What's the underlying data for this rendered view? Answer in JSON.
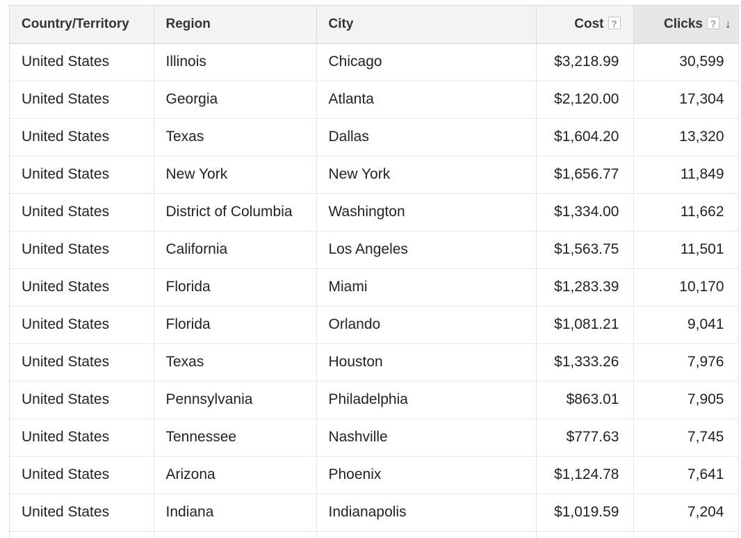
{
  "table": {
    "headers": {
      "country": "Country/Territory",
      "region": "Region",
      "city": "City",
      "cost": "Cost",
      "clicks": "Clicks"
    },
    "help_glyph": "?",
    "sort_glyph": "↓",
    "sorted_column": "Clicks",
    "sort_direction": "descending",
    "rows": [
      {
        "country": "United States",
        "region": "Illinois",
        "city": "Chicago",
        "cost": "$3,218.99",
        "clicks": "30,599"
      },
      {
        "country": "United States",
        "region": "Georgia",
        "city": "Atlanta",
        "cost": "$2,120.00",
        "clicks": "17,304"
      },
      {
        "country": "United States",
        "region": "Texas",
        "city": "Dallas",
        "cost": "$1,604.20",
        "clicks": "13,320"
      },
      {
        "country": "United States",
        "region": "New York",
        "city": "New York",
        "cost": "$1,656.77",
        "clicks": "11,849"
      },
      {
        "country": "United States",
        "region": "District of Columbia",
        "city": "Washington",
        "cost": "$1,334.00",
        "clicks": "11,662"
      },
      {
        "country": "United States",
        "region": "California",
        "city": "Los Angeles",
        "cost": "$1,563.75",
        "clicks": "11,501"
      },
      {
        "country": "United States",
        "region": "Florida",
        "city": "Miami",
        "cost": "$1,283.39",
        "clicks": "10,170"
      },
      {
        "country": "United States",
        "region": "Florida",
        "city": "Orlando",
        "cost": "$1,081.21",
        "clicks": "9,041"
      },
      {
        "country": "United States",
        "region": "Texas",
        "city": "Houston",
        "cost": "$1,333.26",
        "clicks": "7,976"
      },
      {
        "country": "United States",
        "region": "Pennsylvania",
        "city": "Philadelphia",
        "cost": "$863.01",
        "clicks": "7,905"
      },
      {
        "country": "United States",
        "region": "Tennessee",
        "city": "Nashville",
        "cost": "$777.63",
        "clicks": "7,745"
      },
      {
        "country": "United States",
        "region": "Arizona",
        "city": "Phoenix",
        "cost": "$1,124.78",
        "clicks": "7,641"
      },
      {
        "country": "United States",
        "region": "Indiana",
        "city": "Indianapolis",
        "cost": "$1,019.59",
        "clicks": "7,204"
      }
    ]
  }
}
